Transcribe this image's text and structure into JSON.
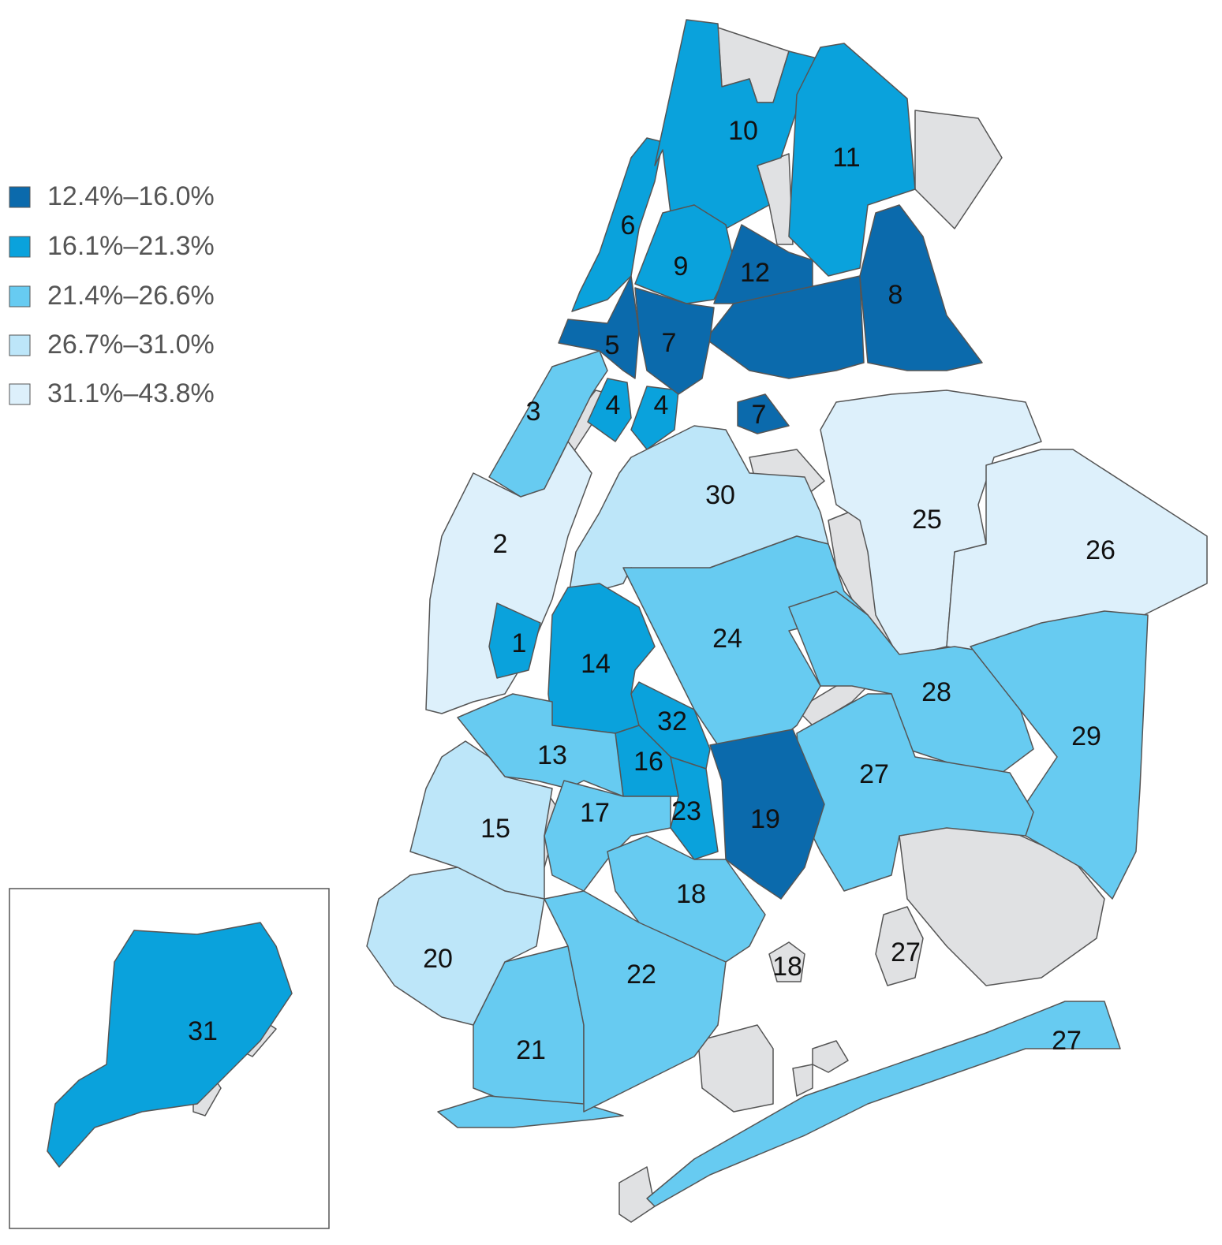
{
  "legend": [
    {
      "label": "12.4%–16.0%",
      "color": "#0b6aac"
    },
    {
      "label": "16.1%–21.3%",
      "color": "#0aa2dc"
    },
    {
      "label": "21.4%–26.6%",
      "color": "#67cbf1"
    },
    {
      "label": "26.7%–31.0%",
      "color": "#bde6f9"
    },
    {
      "label": "31.1%–43.8%",
      "color": "#ddf0fb"
    }
  ],
  "districts": [
    {
      "label": "1",
      "color": "#0aa2dc"
    },
    {
      "label": "2",
      "color": "#ddf0fb"
    },
    {
      "label": "3",
      "color": "#67cbf1"
    },
    {
      "label": "4",
      "color": "#0aa2dc"
    },
    {
      "label": "4",
      "color": "#0aa2dc"
    },
    {
      "label": "5",
      "color": "#0b6aac"
    },
    {
      "label": "6",
      "color": "#0aa2dc"
    },
    {
      "label": "7",
      "color": "#0b6aac"
    },
    {
      "label": "7",
      "color": "#0b6aac"
    },
    {
      "label": "8",
      "color": "#0b6aac"
    },
    {
      "label": "9",
      "color": "#0aa2dc"
    },
    {
      "label": "10",
      "color": "#0aa2dc"
    },
    {
      "label": "11",
      "color": "#0aa2dc"
    },
    {
      "label": "12",
      "color": "#0b6aac"
    },
    {
      "label": "13",
      "color": "#67cbf1"
    },
    {
      "label": "14",
      "color": "#0aa2dc"
    },
    {
      "label": "15",
      "color": "#bde6f9"
    },
    {
      "label": "16",
      "color": "#0aa2dc"
    },
    {
      "label": "17",
      "color": "#67cbf1"
    },
    {
      "label": "18",
      "color": "#67cbf1"
    },
    {
      "label": "18"
    },
    {
      "label": "19",
      "color": "#0b6aac"
    },
    {
      "label": "20",
      "color": "#bde6f9"
    },
    {
      "label": "21",
      "color": "#67cbf1"
    },
    {
      "label": "22",
      "color": "#67cbf1"
    },
    {
      "label": "23",
      "color": "#0aa2dc"
    },
    {
      "label": "24",
      "color": "#67cbf1"
    },
    {
      "label": "25",
      "color": "#ddf0fb"
    },
    {
      "label": "26",
      "color": "#ddf0fb"
    },
    {
      "label": "27",
      "color": "#67cbf1"
    },
    {
      "label": "27"
    },
    {
      "label": "27",
      "color": "#67cbf1"
    },
    {
      "label": "28",
      "color": "#67cbf1"
    },
    {
      "label": "29",
      "color": "#67cbf1"
    },
    {
      "label": "30",
      "color": "#bde6f9"
    },
    {
      "label": "31",
      "color": "#0aa2dc"
    },
    {
      "label": "32",
      "color": "#0aa2dc"
    }
  ]
}
